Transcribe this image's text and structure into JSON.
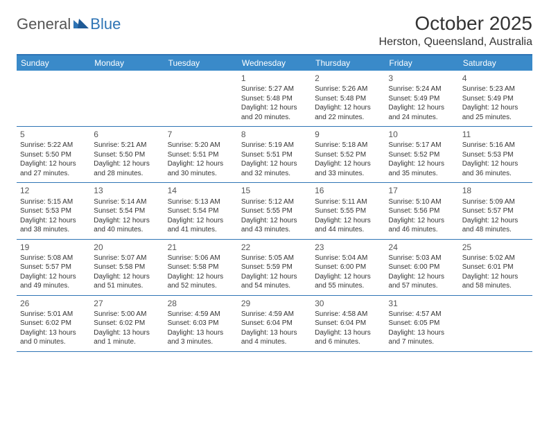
{
  "logo": {
    "general": "General",
    "blue": "Blue"
  },
  "title": "October 2025",
  "location": "Herston, Queensland, Australia",
  "colors": {
    "header_bg": "#3a8ac9",
    "border": "#2e74b5",
    "text": "#333333",
    "logo_blue": "#2e74b5",
    "logo_gray": "#555555"
  },
  "days_of_week": [
    "Sunday",
    "Monday",
    "Tuesday",
    "Wednesday",
    "Thursday",
    "Friday",
    "Saturday"
  ],
  "weeks": [
    [
      {
        "n": "",
        "sr": "",
        "ss": "",
        "dl": ""
      },
      {
        "n": "",
        "sr": "",
        "ss": "",
        "dl": ""
      },
      {
        "n": "",
        "sr": "",
        "ss": "",
        "dl": ""
      },
      {
        "n": "1",
        "sr": "Sunrise: 5:27 AM",
        "ss": "Sunset: 5:48 PM",
        "dl": "Daylight: 12 hours and 20 minutes."
      },
      {
        "n": "2",
        "sr": "Sunrise: 5:26 AM",
        "ss": "Sunset: 5:48 PM",
        "dl": "Daylight: 12 hours and 22 minutes."
      },
      {
        "n": "3",
        "sr": "Sunrise: 5:24 AM",
        "ss": "Sunset: 5:49 PM",
        "dl": "Daylight: 12 hours and 24 minutes."
      },
      {
        "n": "4",
        "sr": "Sunrise: 5:23 AM",
        "ss": "Sunset: 5:49 PM",
        "dl": "Daylight: 12 hours and 25 minutes."
      }
    ],
    [
      {
        "n": "5",
        "sr": "Sunrise: 5:22 AM",
        "ss": "Sunset: 5:50 PM",
        "dl": "Daylight: 12 hours and 27 minutes."
      },
      {
        "n": "6",
        "sr": "Sunrise: 5:21 AM",
        "ss": "Sunset: 5:50 PM",
        "dl": "Daylight: 12 hours and 28 minutes."
      },
      {
        "n": "7",
        "sr": "Sunrise: 5:20 AM",
        "ss": "Sunset: 5:51 PM",
        "dl": "Daylight: 12 hours and 30 minutes."
      },
      {
        "n": "8",
        "sr": "Sunrise: 5:19 AM",
        "ss": "Sunset: 5:51 PM",
        "dl": "Daylight: 12 hours and 32 minutes."
      },
      {
        "n": "9",
        "sr": "Sunrise: 5:18 AM",
        "ss": "Sunset: 5:52 PM",
        "dl": "Daylight: 12 hours and 33 minutes."
      },
      {
        "n": "10",
        "sr": "Sunrise: 5:17 AM",
        "ss": "Sunset: 5:52 PM",
        "dl": "Daylight: 12 hours and 35 minutes."
      },
      {
        "n": "11",
        "sr": "Sunrise: 5:16 AM",
        "ss": "Sunset: 5:53 PM",
        "dl": "Daylight: 12 hours and 36 minutes."
      }
    ],
    [
      {
        "n": "12",
        "sr": "Sunrise: 5:15 AM",
        "ss": "Sunset: 5:53 PM",
        "dl": "Daylight: 12 hours and 38 minutes."
      },
      {
        "n": "13",
        "sr": "Sunrise: 5:14 AM",
        "ss": "Sunset: 5:54 PM",
        "dl": "Daylight: 12 hours and 40 minutes."
      },
      {
        "n": "14",
        "sr": "Sunrise: 5:13 AM",
        "ss": "Sunset: 5:54 PM",
        "dl": "Daylight: 12 hours and 41 minutes."
      },
      {
        "n": "15",
        "sr": "Sunrise: 5:12 AM",
        "ss": "Sunset: 5:55 PM",
        "dl": "Daylight: 12 hours and 43 minutes."
      },
      {
        "n": "16",
        "sr": "Sunrise: 5:11 AM",
        "ss": "Sunset: 5:55 PM",
        "dl": "Daylight: 12 hours and 44 minutes."
      },
      {
        "n": "17",
        "sr": "Sunrise: 5:10 AM",
        "ss": "Sunset: 5:56 PM",
        "dl": "Daylight: 12 hours and 46 minutes."
      },
      {
        "n": "18",
        "sr": "Sunrise: 5:09 AM",
        "ss": "Sunset: 5:57 PM",
        "dl": "Daylight: 12 hours and 48 minutes."
      }
    ],
    [
      {
        "n": "19",
        "sr": "Sunrise: 5:08 AM",
        "ss": "Sunset: 5:57 PM",
        "dl": "Daylight: 12 hours and 49 minutes."
      },
      {
        "n": "20",
        "sr": "Sunrise: 5:07 AM",
        "ss": "Sunset: 5:58 PM",
        "dl": "Daylight: 12 hours and 51 minutes."
      },
      {
        "n": "21",
        "sr": "Sunrise: 5:06 AM",
        "ss": "Sunset: 5:58 PM",
        "dl": "Daylight: 12 hours and 52 minutes."
      },
      {
        "n": "22",
        "sr": "Sunrise: 5:05 AM",
        "ss": "Sunset: 5:59 PM",
        "dl": "Daylight: 12 hours and 54 minutes."
      },
      {
        "n": "23",
        "sr": "Sunrise: 5:04 AM",
        "ss": "Sunset: 6:00 PM",
        "dl": "Daylight: 12 hours and 55 minutes."
      },
      {
        "n": "24",
        "sr": "Sunrise: 5:03 AM",
        "ss": "Sunset: 6:00 PM",
        "dl": "Daylight: 12 hours and 57 minutes."
      },
      {
        "n": "25",
        "sr": "Sunrise: 5:02 AM",
        "ss": "Sunset: 6:01 PM",
        "dl": "Daylight: 12 hours and 58 minutes."
      }
    ],
    [
      {
        "n": "26",
        "sr": "Sunrise: 5:01 AM",
        "ss": "Sunset: 6:02 PM",
        "dl": "Daylight: 13 hours and 0 minutes."
      },
      {
        "n": "27",
        "sr": "Sunrise: 5:00 AM",
        "ss": "Sunset: 6:02 PM",
        "dl": "Daylight: 13 hours and 1 minute."
      },
      {
        "n": "28",
        "sr": "Sunrise: 4:59 AM",
        "ss": "Sunset: 6:03 PM",
        "dl": "Daylight: 13 hours and 3 minutes."
      },
      {
        "n": "29",
        "sr": "Sunrise: 4:59 AM",
        "ss": "Sunset: 6:04 PM",
        "dl": "Daylight: 13 hours and 4 minutes."
      },
      {
        "n": "30",
        "sr": "Sunrise: 4:58 AM",
        "ss": "Sunset: 6:04 PM",
        "dl": "Daylight: 13 hours and 6 minutes."
      },
      {
        "n": "31",
        "sr": "Sunrise: 4:57 AM",
        "ss": "Sunset: 6:05 PM",
        "dl": "Daylight: 13 hours and 7 minutes."
      },
      {
        "n": "",
        "sr": "",
        "ss": "",
        "dl": ""
      }
    ]
  ]
}
